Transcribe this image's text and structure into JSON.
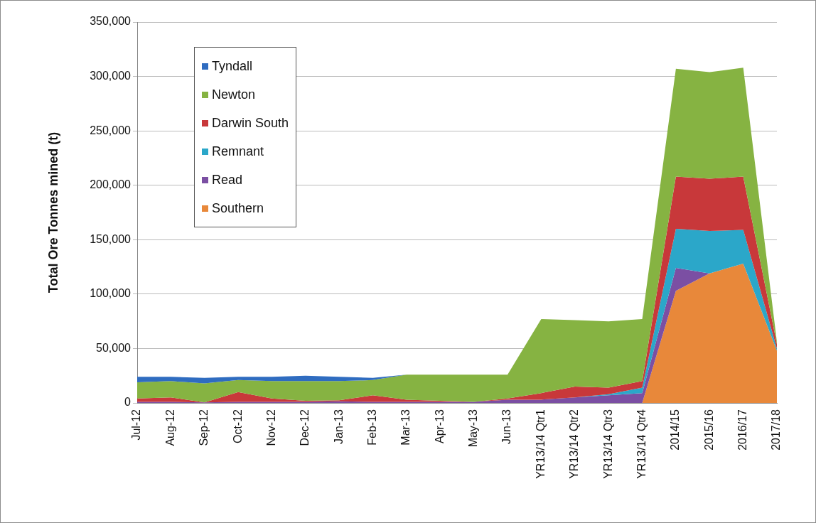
{
  "chart_data": {
    "type": "area",
    "ylabel": "Total Ore Tonnes mined (t)",
    "stacked": true,
    "grid": "y",
    "legend": "top left",
    "categories": [
      "Jul-12",
      "Aug-12",
      "Sep-12",
      "Oct-12",
      "Nov-12",
      "Dec-12",
      "Jan-13",
      "Feb-13",
      "Mar-13",
      "Apr-13",
      "May-13",
      "Jun-13",
      "YR13/14 Qtr1",
      "YR13/14 Qtr2",
      "YR13/14 Qtr3",
      "YR13/14 Qtr4",
      "2014/15",
      "2015/16",
      "2016/17",
      "2017/18"
    ],
    "ylim": [
      0,
      350000
    ],
    "yticks": [
      {
        "value": 0,
        "label": "0"
      },
      {
        "value": 50000,
        "label": "50,000"
      },
      {
        "value": 100000,
        "label": "100,000"
      },
      {
        "value": 150000,
        "label": "150,000"
      },
      {
        "value": 200000,
        "label": "200,000"
      },
      {
        "value": 250000,
        "label": "250,000"
      },
      {
        "value": 300000,
        "label": "300,000"
      },
      {
        "value": 350000,
        "label": "350,000"
      }
    ],
    "series": [
      {
        "name": "Southern",
        "color": "#e8883a",
        "values": [
          null,
          null,
          null,
          null,
          null,
          null,
          null,
          null,
          null,
          null,
          null,
          null,
          null,
          null,
          null,
          0,
          103000,
          119000,
          128000,
          48000
        ]
      },
      {
        "name": "Read",
        "color": "#7b4fa3",
        "values": [
          1000,
          1000,
          500,
          1000,
          1000,
          1000,
          1500,
          1000,
          1000,
          1000,
          1000,
          3000,
          3000,
          5000,
          7000,
          9000,
          21000,
          0,
          null,
          null
        ]
      },
      {
        "name": "Remnant",
        "color": "#2ba7c9",
        "values": [
          null,
          null,
          null,
          null,
          null,
          null,
          null,
          null,
          null,
          null,
          null,
          null,
          null,
          0,
          1000,
          5000,
          36000,
          39000,
          31000,
          2000
        ]
      },
      {
        "name": "Darwin South",
        "color": "#c8383a",
        "values": [
          3000,
          4000,
          0,
          9000,
          3000,
          1000,
          1000,
          6000,
          2000,
          1000,
          0,
          1000,
          6000,
          10000,
          6000,
          6000,
          48000,
          48000,
          49000,
          4000
        ]
      },
      {
        "name": "Newton",
        "color": "#86b342",
        "values": [
          15000,
          15000,
          17500,
          11000,
          16000,
          18000,
          17500,
          14000,
          23000,
          24000,
          25000,
          22000,
          68000,
          61000,
          61000,
          57000,
          99000,
          98000,
          100000,
          2000
        ]
      },
      {
        "name": "Tyndall",
        "color": "#2f6cc0",
        "values": [
          5000,
          4000,
          5000,
          3000,
          4000,
          5000,
          4000,
          2000,
          0,
          null,
          null,
          null,
          null,
          null,
          null,
          null,
          null,
          null,
          null,
          null
        ]
      }
    ]
  }
}
